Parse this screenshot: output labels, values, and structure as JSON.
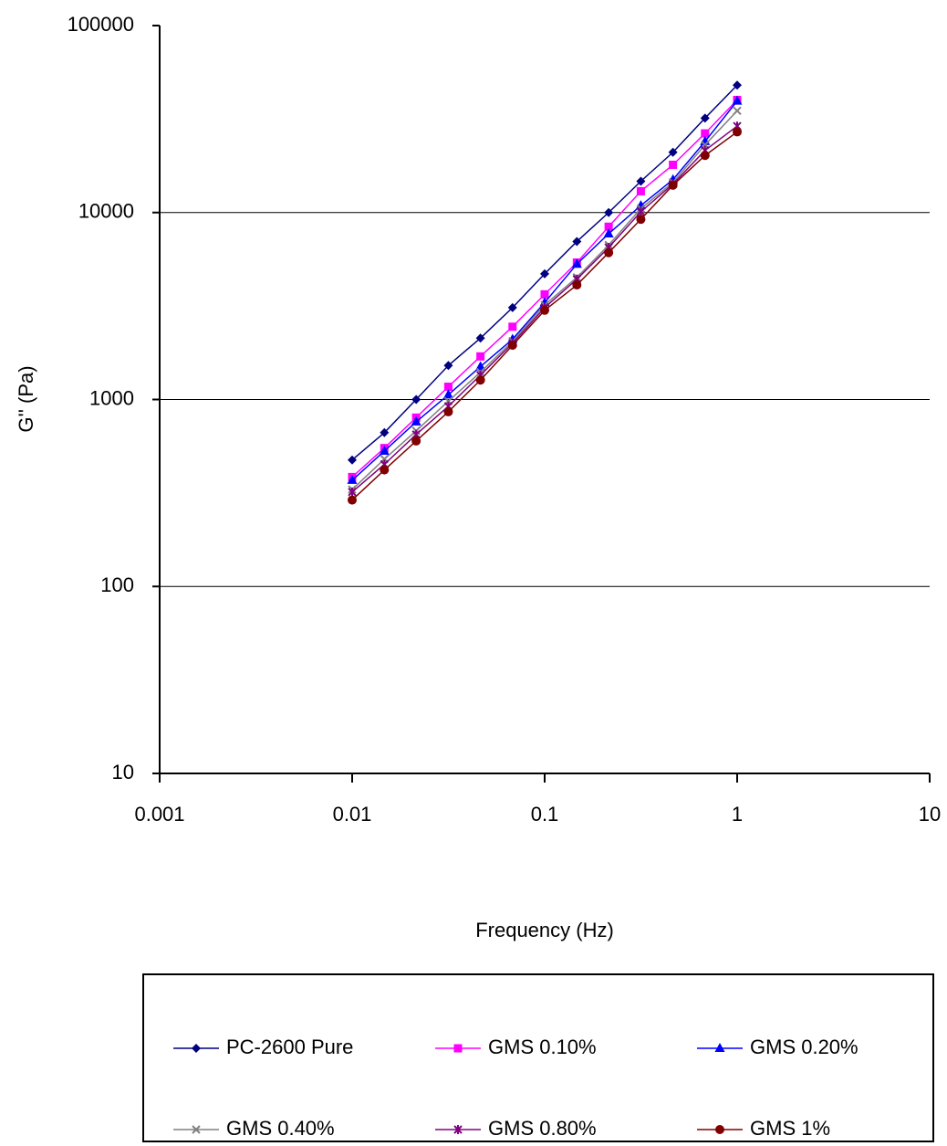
{
  "chart_data": {
    "type": "line",
    "x_label": "Frequency (Hz)",
    "y_label": "G'' (Pa)",
    "x_scale": "log",
    "y_scale": "log",
    "grid": true,
    "xlim": [
      0.001,
      10
    ],
    "xticks": [
      0.001,
      0.01,
      0.1,
      1,
      10
    ],
    "ylim": [
      10,
      100000
    ],
    "yticks": [
      10,
      100,
      1000,
      10000,
      100000
    ],
    "x": [
      0.01,
      0.0147,
      0.0215,
      0.0316,
      0.0464,
      0.0681,
      0.1,
      0.147,
      0.215,
      0.316,
      0.464,
      0.681,
      1
    ],
    "series": [
      {
        "name": "PC-2600 Pure",
        "color": "#000080",
        "marker": "diamond",
        "values": [
          475,
          665,
          1000,
          1520,
          2130,
          3100,
          4700,
          7000,
          10000,
          14700,
          21000,
          32000,
          48000
        ]
      },
      {
        "name": "GMS 0.10%",
        "color": "#ff00ff",
        "marker": "square",
        "values": [
          385,
          550,
          800,
          1170,
          1700,
          2450,
          3650,
          5400,
          8400,
          13000,
          18000,
          26500,
          40000
        ]
      },
      {
        "name": "GMS 0.20%",
        "color": "#0000ff",
        "marker": "triangle",
        "values": [
          370,
          530,
          760,
          1060,
          1500,
          2100,
          3300,
          5300,
          7700,
          10900,
          15000,
          24000,
          39500
        ]
      },
      {
        "name": "GMS 0.40%",
        "color": "#808080",
        "marker": "x",
        "values": [
          330,
          480,
          680,
          980,
          1400,
          2050,
          3200,
          4500,
          6700,
          10500,
          14500,
          23000,
          35000
        ]
      },
      {
        "name": "GMS 0.80%",
        "color": "#800080",
        "marker": "star",
        "values": [
          320,
          450,
          650,
          920,
          1350,
          2000,
          3100,
          4400,
          6500,
          10100,
          14200,
          21500,
          29000
        ]
      },
      {
        "name": "GMS 1%",
        "color": "#800000",
        "marker": "circle",
        "values": [
          290,
          420,
          600,
          860,
          1270,
          1950,
          3000,
          4100,
          6100,
          9200,
          14000,
          20200,
          27000
        ]
      }
    ]
  }
}
